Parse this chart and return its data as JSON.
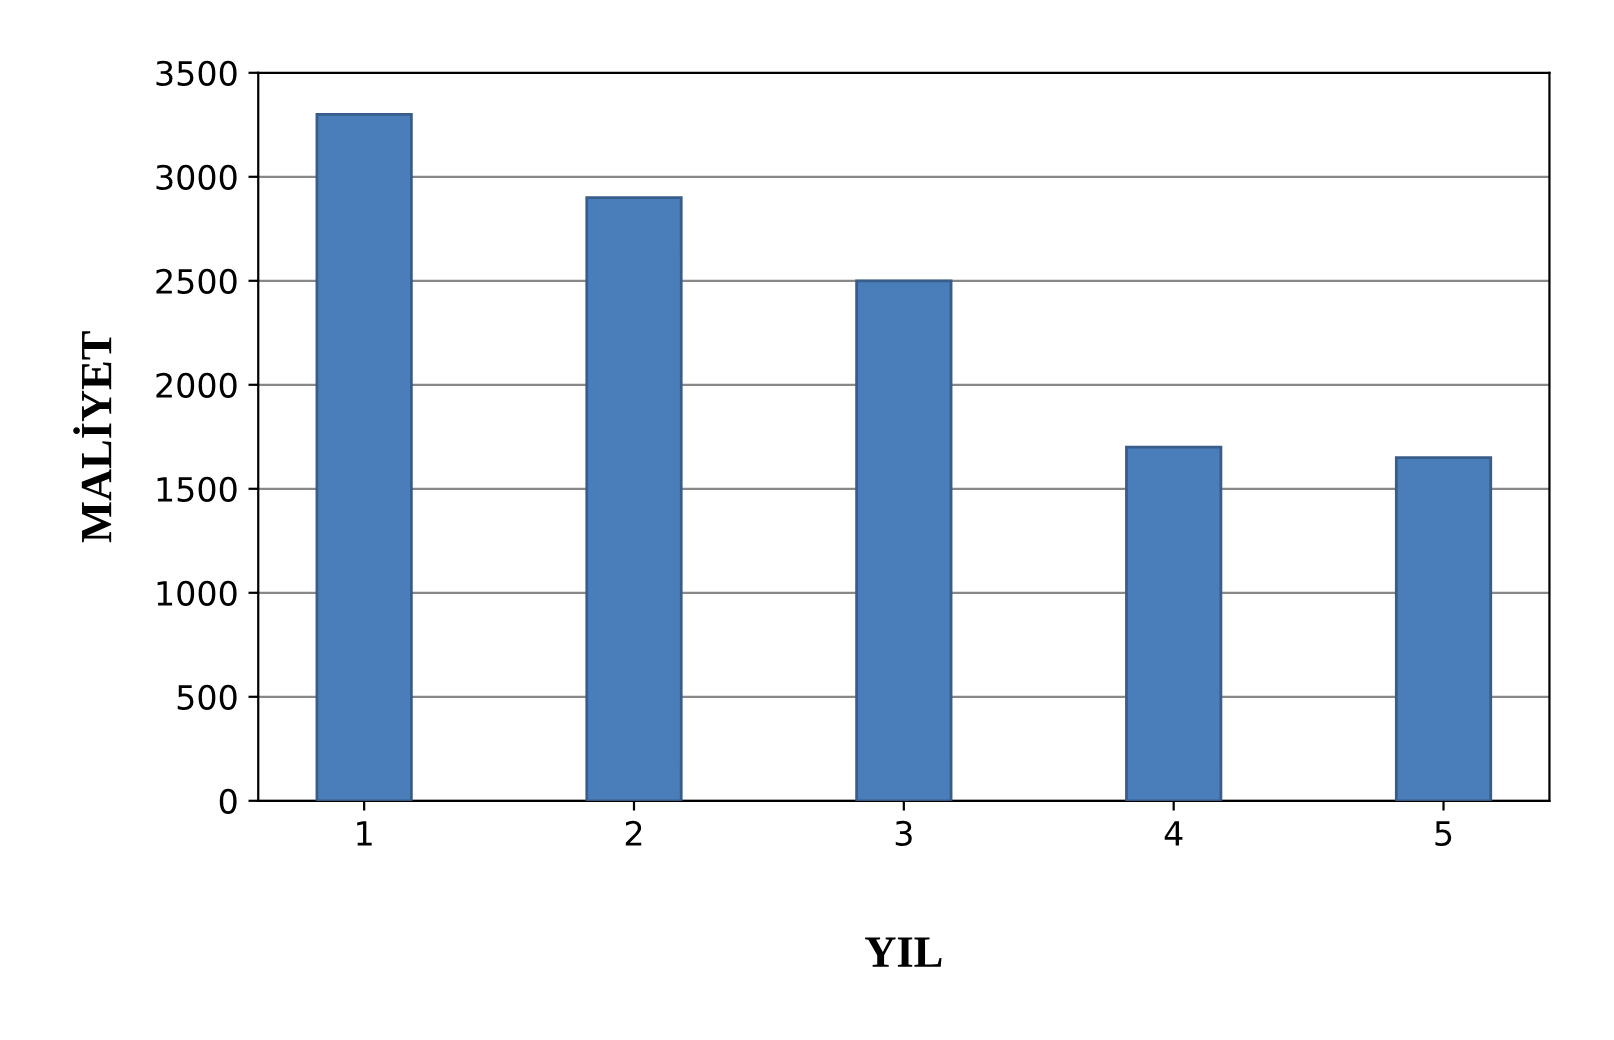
{
  "chart_data": {
    "type": "bar",
    "xlabel": "YIL",
    "ylabel": "MALİYET",
    "categories": [
      "1",
      "2",
      "3",
      "4",
      "5"
    ],
    "values": [
      3300,
      2900,
      2500,
      1700,
      1650
    ],
    "color": "#4a7ebb",
    "ylim": [
      0,
      3500
    ],
    "yticks": [
      0,
      500,
      1000,
      1500,
      2000,
      2500,
      3000,
      3500
    ],
    "grid": "y"
  }
}
